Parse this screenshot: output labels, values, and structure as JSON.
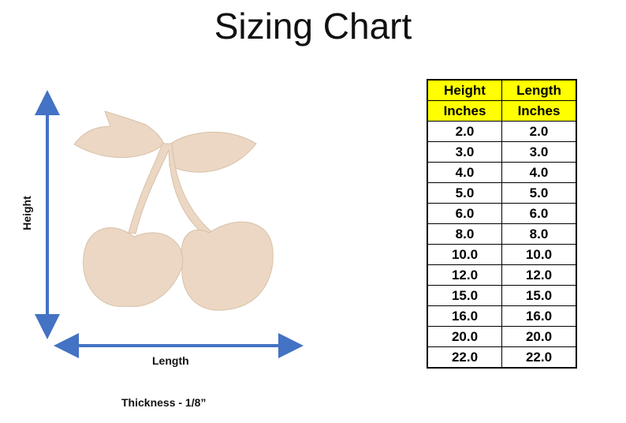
{
  "header": {
    "title": "Sizing Chart"
  },
  "labels": {
    "height": "Height",
    "length": "Length",
    "thickness": "Thickness - 1/8”"
  },
  "table": {
    "header_rows": [
      [
        "Height",
        "Length"
      ],
      [
        "Inches",
        "Inches"
      ]
    ],
    "rows": [
      [
        "2.0",
        "2.0"
      ],
      [
        "3.0",
        "3.0"
      ],
      [
        "4.0",
        "4.0"
      ],
      [
        "5.0",
        "5.0"
      ],
      [
        "6.0",
        "6.0"
      ],
      [
        "8.0",
        "8.0"
      ],
      [
        "10.0",
        "10.0"
      ],
      [
        "12.0",
        "12.0"
      ],
      [
        "15.0",
        "15.0"
      ],
      [
        "16.0",
        "16.0"
      ],
      [
        "20.0",
        "20.0"
      ],
      [
        "22.0",
        "22.0"
      ]
    ]
  }
}
